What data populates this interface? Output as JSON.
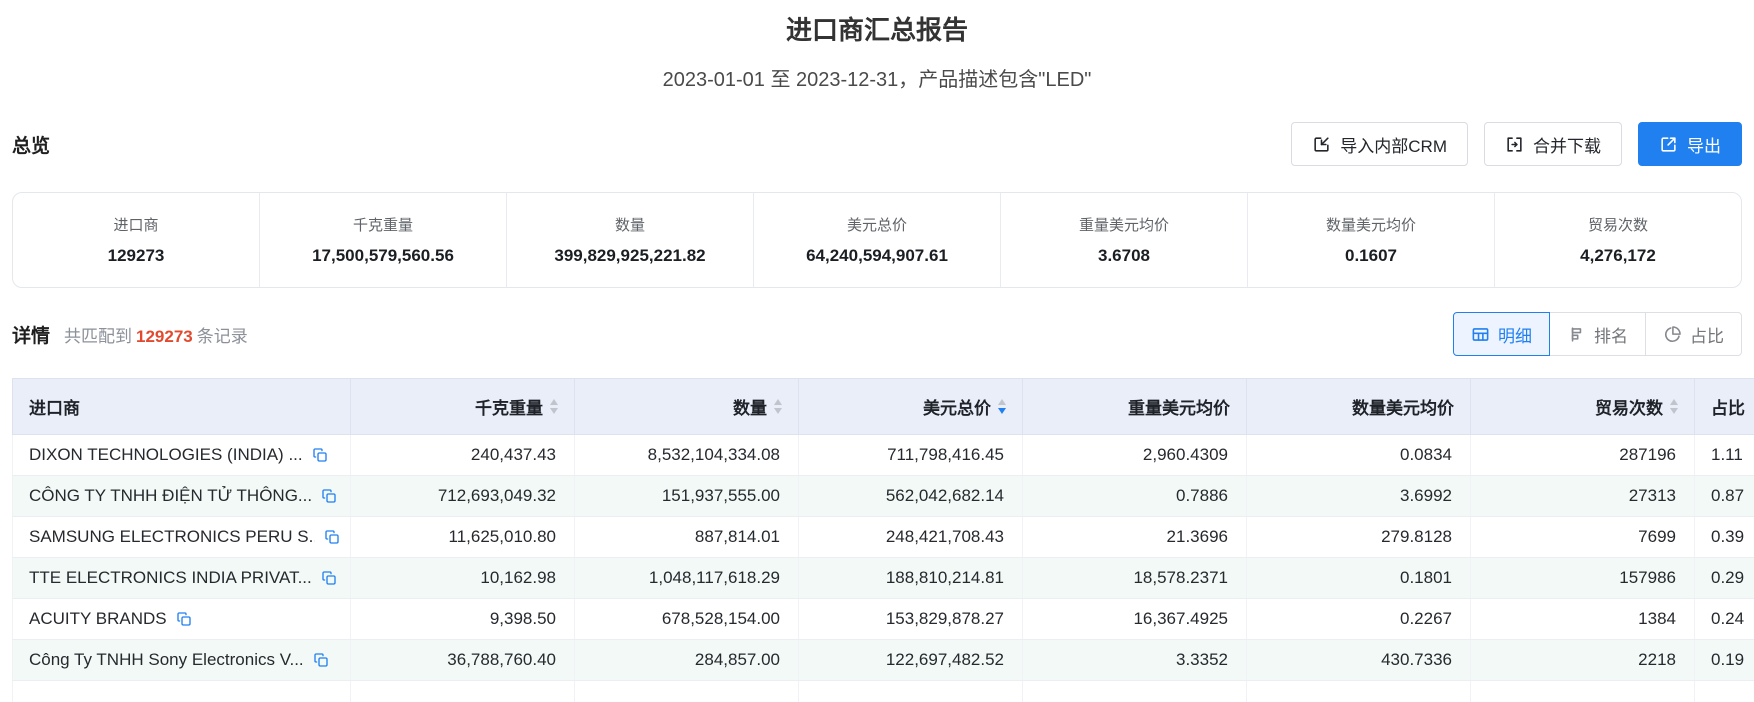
{
  "page": {
    "title": "进口商汇总报告",
    "subtitle": "2023-01-01 至 2023-12-31，产品描述包含\"LED\""
  },
  "overview": {
    "heading": "总览",
    "buttons": {
      "import_crm": "导入内部CRM",
      "merge_download": "合并下载",
      "export": "导出"
    },
    "stats": [
      {
        "label": "进口商",
        "value": "129273"
      },
      {
        "label": "千克重量",
        "value": "17,500,579,560.56"
      },
      {
        "label": "数量",
        "value": "399,829,925,221.82"
      },
      {
        "label": "美元总价",
        "value": "64,240,594,907.61"
      },
      {
        "label": "重量美元均价",
        "value": "3.6708"
      },
      {
        "label": "数量美元均价",
        "value": "0.1607"
      },
      {
        "label": "贸易次数",
        "value": "4,276,172"
      }
    ]
  },
  "details": {
    "heading": "详情",
    "match_prefix": "共匹配到",
    "match_count": "129273",
    "match_suffix": "条记录",
    "tabs": [
      {
        "label": "明细",
        "icon": "table-icon",
        "active": true
      },
      {
        "label": "排名",
        "icon": "ranking-icon",
        "active": false
      },
      {
        "label": "占比",
        "icon": "pie-icon",
        "active": false
      }
    ]
  },
  "table": {
    "columns": [
      {
        "label": "进口商",
        "sortable": false,
        "align": "left"
      },
      {
        "label": "千克重量",
        "sortable": true,
        "sort": "none",
        "align": "right"
      },
      {
        "label": "数量",
        "sortable": true,
        "sort": "none",
        "align": "right"
      },
      {
        "label": "美元总价",
        "sortable": true,
        "sort": "desc",
        "align": "right"
      },
      {
        "label": "重量美元均价",
        "sortable": false,
        "align": "right"
      },
      {
        "label": "数量美元均价",
        "sortable": false,
        "align": "right"
      },
      {
        "label": "贸易次数",
        "sortable": true,
        "sort": "none",
        "align": "right"
      },
      {
        "label": "占比",
        "sortable": false,
        "align": "left"
      }
    ],
    "rows": [
      {
        "importer": "DIXON TECHNOLOGIES (INDIA) ...",
        "weight": "240,437.43",
        "quantity": "8,532,104,334.08",
        "usd_total": "711,798,416.45",
        "usd_per_weight": "2,960.4309",
        "usd_per_qty": "0.0834",
        "trades": "287196",
        "share": "1.11"
      },
      {
        "importer": "CÔNG TY TNHH ĐIỆN TỬ THÔNG...",
        "weight": "712,693,049.32",
        "quantity": "151,937,555.00",
        "usd_total": "562,042,682.14",
        "usd_per_weight": "0.7886",
        "usd_per_qty": "3.6992",
        "trades": "27313",
        "share": "0.87"
      },
      {
        "importer": "SAMSUNG ELECTRONICS PERU S...",
        "weight": "11,625,010.80",
        "quantity": "887,814.01",
        "usd_total": "248,421,708.43",
        "usd_per_weight": "21.3696",
        "usd_per_qty": "279.8128",
        "trades": "7699",
        "share": "0.39"
      },
      {
        "importer": "TTE ELECTRONICS INDIA PRIVAT...",
        "weight": "10,162.98",
        "quantity": "1,048,117,618.29",
        "usd_total": "188,810,214.81",
        "usd_per_weight": "18,578.2371",
        "usd_per_qty": "0.1801",
        "trades": "157986",
        "share": "0.29"
      },
      {
        "importer": "ACUITY BRANDS",
        "weight": "9,398.50",
        "quantity": "678,528,154.00",
        "usd_total": "153,829,878.27",
        "usd_per_weight": "16,367.4925",
        "usd_per_qty": "0.2267",
        "trades": "1384",
        "share": "0.24"
      },
      {
        "importer": "Công Ty TNHH Sony Electronics V...",
        "weight": "36,788,760.40",
        "quantity": "284,857.00",
        "usd_total": "122,697,482.52",
        "usd_per_weight": "3.3352",
        "usd_per_qty": "430.7336",
        "trades": "2218",
        "share": "0.19"
      }
    ]
  },
  "colors": {
    "accent": "#2080f0",
    "count_red": "#e2492f",
    "table_header_bg": "#eaeef8",
    "zebra_bg": "#f3f9f6"
  }
}
